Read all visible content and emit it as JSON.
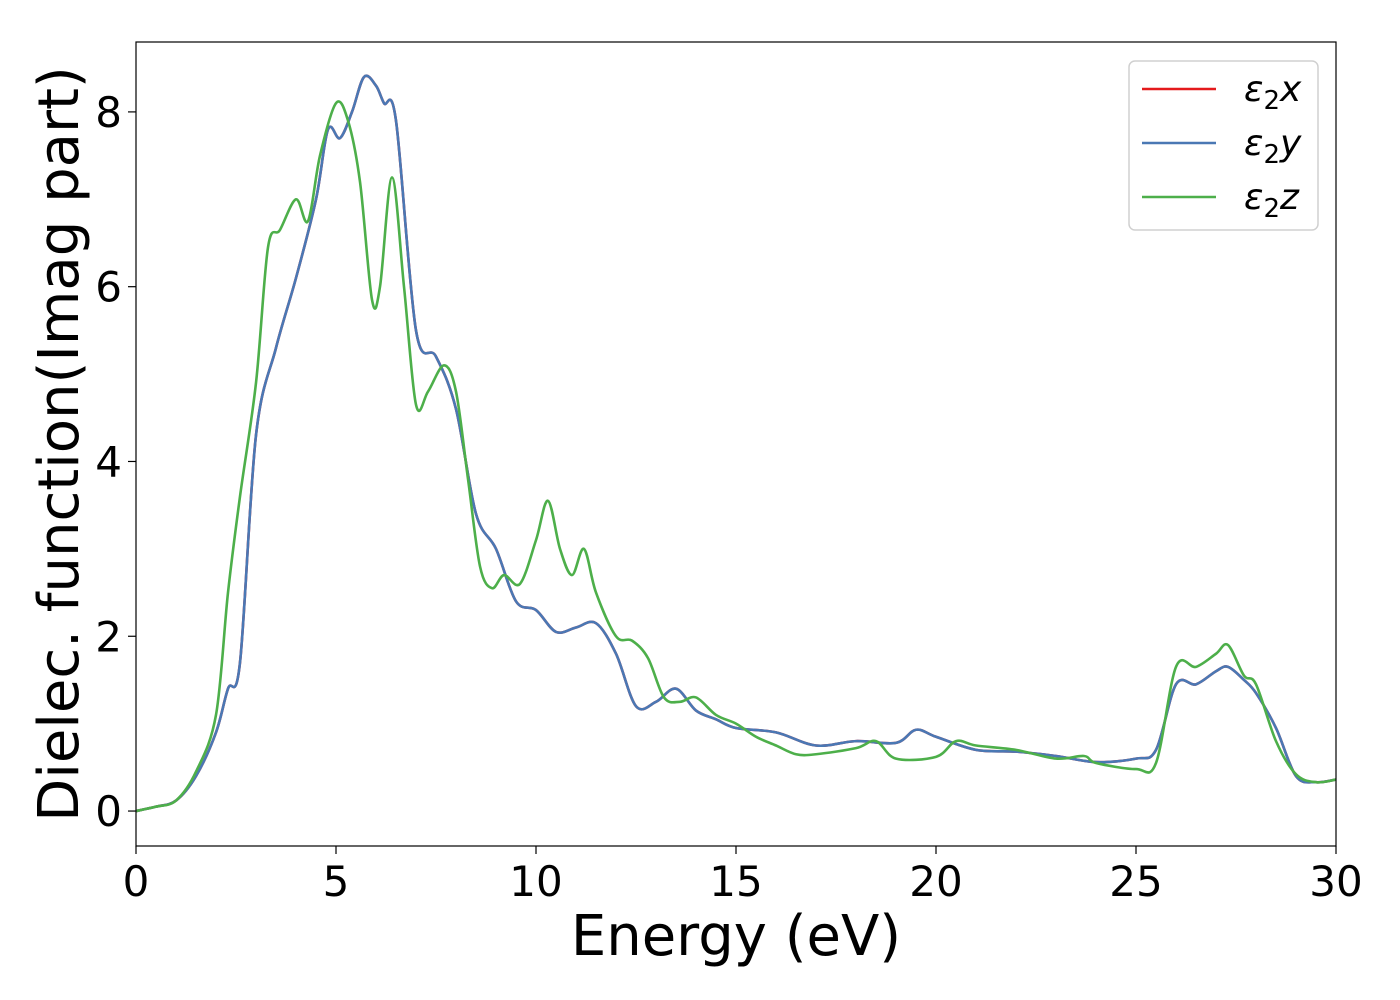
{
  "chart_data": {
    "type": "line",
    "title": "",
    "xlabel": "Energy (eV)",
    "ylabel": "Dielec. function(Imag part)",
    "xlim": [
      0,
      30
    ],
    "ylim": [
      -0.4,
      8.8
    ],
    "xticks": [
      0,
      5,
      10,
      15,
      20,
      25,
      30
    ],
    "yticks": [
      0,
      2,
      4,
      6,
      8
    ],
    "grid": false,
    "legend_position": "top-right",
    "series": [
      {
        "name": "ε₂x",
        "legend_base": "ε",
        "legend_sub": "2",
        "legend_var": "x",
        "color": "#e41a1c",
        "x": [
          0,
          0.5,
          1,
          1.5,
          2,
          2.3,
          2.6,
          3,
          3.5,
          4,
          4.5,
          4.8,
          5.1,
          5.4,
          5.7,
          6,
          6.2,
          6.5,
          7,
          7.5,
          8,
          8.5,
          9,
          9.5,
          10,
          10.5,
          11,
          11.5,
          12,
          12.5,
          13,
          13.5,
          14,
          14.5,
          15,
          16,
          17,
          18,
          19,
          19.5,
          20,
          21,
          22,
          23,
          24,
          25,
          25.5,
          26,
          26.5,
          27,
          27.3,
          27.7,
          28,
          28.5,
          29,
          29.5,
          30
        ],
        "y": [
          0,
          0.05,
          0.12,
          0.4,
          0.9,
          1.4,
          1.7,
          4.3,
          5.3,
          6.1,
          7.0,
          7.8,
          7.7,
          8.0,
          8.4,
          8.3,
          8.1,
          7.9,
          5.5,
          5.2,
          4.6,
          3.4,
          3.0,
          2.4,
          2.3,
          2.05,
          2.1,
          2.15,
          1.8,
          1.2,
          1.25,
          1.4,
          1.15,
          1.05,
          0.95,
          0.9,
          0.75,
          0.8,
          0.78,
          0.93,
          0.85,
          0.7,
          0.68,
          0.63,
          0.56,
          0.6,
          0.7,
          1.45,
          1.45,
          1.6,
          1.65,
          1.5,
          1.35,
          0.95,
          0.4,
          0.33,
          0.36
        ]
      },
      {
        "name": "ε₂y",
        "legend_base": "ε",
        "legend_sub": "2",
        "legend_var": "y",
        "color": "#4a78b4",
        "x": [
          0,
          0.5,
          1,
          1.5,
          2,
          2.3,
          2.6,
          3,
          3.5,
          4,
          4.5,
          4.8,
          5.1,
          5.4,
          5.7,
          6,
          6.2,
          6.5,
          7,
          7.5,
          8,
          8.5,
          9,
          9.5,
          10,
          10.5,
          11,
          11.5,
          12,
          12.5,
          13,
          13.5,
          14,
          14.5,
          15,
          16,
          17,
          18,
          19,
          19.5,
          20,
          21,
          22,
          23,
          24,
          25,
          25.5,
          26,
          26.5,
          27,
          27.3,
          27.7,
          28,
          28.5,
          29,
          29.5,
          30
        ],
        "y": [
          0,
          0.05,
          0.12,
          0.4,
          0.9,
          1.4,
          1.7,
          4.3,
          5.3,
          6.1,
          7.0,
          7.8,
          7.7,
          8.0,
          8.4,
          8.3,
          8.1,
          7.9,
          5.5,
          5.2,
          4.6,
          3.4,
          3.0,
          2.4,
          2.3,
          2.05,
          2.1,
          2.15,
          1.8,
          1.2,
          1.25,
          1.4,
          1.15,
          1.05,
          0.95,
          0.9,
          0.75,
          0.8,
          0.78,
          0.93,
          0.85,
          0.7,
          0.68,
          0.63,
          0.56,
          0.6,
          0.7,
          1.45,
          1.45,
          1.6,
          1.65,
          1.5,
          1.35,
          0.95,
          0.4,
          0.33,
          0.36
        ]
      },
      {
        "name": "ε₂z",
        "legend_base": "ε",
        "legend_sub": "2",
        "legend_var": "z",
        "color": "#4daf4a",
        "x": [
          0,
          0.5,
          1,
          1.5,
          2,
          2.3,
          2.6,
          3,
          3.3,
          3.6,
          4,
          4.3,
          4.6,
          5,
          5.3,
          5.6,
          5.9,
          6.1,
          6.4,
          6.7,
          7,
          7.3,
          7.7,
          8,
          8.3,
          8.6,
          8.9,
          9.2,
          9.6,
          10,
          10.3,
          10.6,
          10.9,
          11.2,
          11.5,
          12,
          12.4,
          12.8,
          13.2,
          13.6,
          14,
          14.5,
          15,
          15.5,
          16,
          16.5,
          17,
          18,
          18.5,
          19,
          20,
          20.5,
          21,
          22,
          23,
          23.7,
          24,
          25,
          25.5,
          26,
          26.5,
          27,
          27.3,
          27.7,
          28,
          28.5,
          29,
          29.5,
          30
        ],
        "y": [
          0,
          0.05,
          0.12,
          0.45,
          1.1,
          2.5,
          3.6,
          4.9,
          6.45,
          6.65,
          7.0,
          6.75,
          7.5,
          8.1,
          7.9,
          7.2,
          5.85,
          6.0,
          7.25,
          6.0,
          4.65,
          4.8,
          5.1,
          4.8,
          3.8,
          2.8,
          2.55,
          2.7,
          2.6,
          3.1,
          3.55,
          3.0,
          2.7,
          3.0,
          2.5,
          2.0,
          1.95,
          1.75,
          1.3,
          1.25,
          1.3,
          1.1,
          1.0,
          0.85,
          0.75,
          0.65,
          0.65,
          0.72,
          0.8,
          0.6,
          0.62,
          0.8,
          0.75,
          0.7,
          0.6,
          0.63,
          0.55,
          0.48,
          0.55,
          1.65,
          1.65,
          1.8,
          1.9,
          1.55,
          1.45,
          0.8,
          0.42,
          0.33,
          0.36
        ]
      }
    ]
  }
}
